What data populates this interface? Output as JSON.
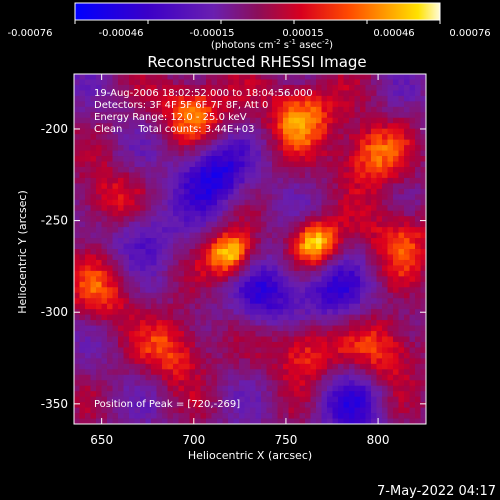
{
  "colorbar": {
    "ticks": [
      "-0.00076",
      "-0.00046",
      "-0.00015",
      "0.00015",
      "0.00046",
      "0.00076"
    ],
    "units_pre": "(photons cm",
    "units_sup1": "-2",
    "units_mid": " s",
    "units_sup2": "-1",
    "units_post": " asec",
    "units_sup3": "-2",
    "units_end": ")"
  },
  "image": {
    "title": "Reconstructed RHESSI Image",
    "info_lines": [
      "19-Aug-2006 18:02:52.000 to 18:04:56.000",
      "Detectors: 3F 4F 5F 6F 7F 8F, Att 0",
      "Energy Range: 12.0 - 25.0 keV",
      "Clean     Total counts: 3.44E+03"
    ],
    "peak_text": "Position of Peak = [720,-269]"
  },
  "axes": {
    "xlabel": "Heliocentric X (arcsec)",
    "ylabel": "Heliocentric Y (arcsec)",
    "xticks": [
      "650",
      "700",
      "750",
      "800"
    ],
    "yticks": [
      "-200",
      "-250",
      "-300",
      "-350"
    ]
  },
  "footer": {
    "timestamp": "7-May-2022 04:17"
  },
  "chart_data": {
    "type": "heatmap",
    "title": "Reconstructed RHESSI Image",
    "xlabel": "Heliocentric X (arcsec)",
    "ylabel": "Heliocentric Y (arcsec)",
    "xlim": [
      635,
      826
    ],
    "ylim": [
      -361,
      -170
    ],
    "colorbar_range": [
      -0.00076,
      0.00076
    ],
    "peak": [
      720,
      -269
    ],
    "bright_sources": [
      {
        "x": 720,
        "y": -269,
        "level": 1.0
      },
      {
        "x": 766,
        "y": -262,
        "level": 0.95
      },
      {
        "x": 700,
        "y": -190,
        "level": 0.7
      },
      {
        "x": 758,
        "y": -192,
        "level": 0.75
      },
      {
        "x": 795,
        "y": -214,
        "level": 0.7
      },
      {
        "x": 812,
        "y": -260,
        "level": 0.6
      },
      {
        "x": 690,
        "y": -320,
        "level": 0.6
      },
      {
        "x": 760,
        "y": -320,
        "level": 0.65
      },
      {
        "x": 805,
        "y": -320,
        "level": 0.6
      },
      {
        "x": 655,
        "y": -240,
        "level": 0.55
      },
      {
        "x": 650,
        "y": -290,
        "level": 0.5
      }
    ],
    "dark_sources": [
      {
        "x": 710,
        "y": -225,
        "level": -0.8
      },
      {
        "x": 740,
        "y": -290,
        "level": -0.6
      },
      {
        "x": 670,
        "y": -255,
        "level": -0.5
      },
      {
        "x": 775,
        "y": -290,
        "level": -0.55
      },
      {
        "x": 785,
        "y": -350,
        "level": -0.5
      }
    ]
  }
}
